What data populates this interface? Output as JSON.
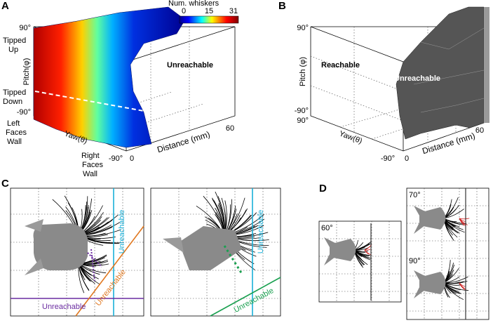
{
  "panels": {
    "A": {
      "label": "A",
      "colorbar": {
        "title": "Num. whiskers",
        "ticks": [
          "0",
          "15",
          "31"
        ]
      },
      "pitch_top": "90°",
      "tipped_up": [
        "Tipped",
        "Up"
      ],
      "pitch_axis": "Pitch(φ)",
      "tipped_down": [
        "Tipped",
        "Down"
      ],
      "pitch_bottom": "-90°",
      "left_faces_wall": [
        "Left",
        "Faces",
        "Wall"
      ],
      "yaw_axis": "Yaw(θ)",
      "right_faces_wall": [
        "Right",
        "Faces",
        "Wall"
      ],
      "yaw_bottom": "-90°",
      "distance_start": "0",
      "distance_end": "60",
      "distance_axis": "Distance (mm)",
      "region": "Unreachable"
    },
    "B": {
      "label": "B",
      "pitch_top": "90°",
      "pitch_axis": "Pitch (φ)",
      "pitch_bottom": "-90°",
      "yaw_top": "90°",
      "yaw_axis": "Yaw(θ)",
      "yaw_bottom": "-90°",
      "distance_start": "0",
      "distance_end": "60",
      "distance_axis": "Distance (mm)",
      "reachable": "Reachable",
      "unreachable": "Unreachable"
    },
    "C": {
      "label": "C",
      "left": {
        "purple": "Unreachable",
        "orange": "Unreachable",
        "cyan": "Unreachable"
      },
      "right": {
        "cyan": "Unreachable",
        "green": "Unreachable"
      }
    },
    "D": {
      "label": "D",
      "angles": [
        "60°",
        "70°",
        "90°"
      ]
    }
  }
}
